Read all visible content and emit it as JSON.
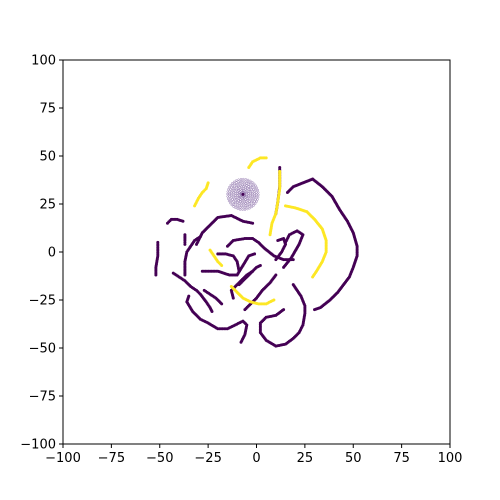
{
  "chart_data": {
    "type": "scatter",
    "title": "",
    "xlabel": "",
    "ylabel": "",
    "xlim": [
      -100,
      100
    ],
    "ylim": [
      -100,
      100
    ],
    "grid": false,
    "x_ticks": [
      -100,
      -75,
      -50,
      -25,
      0,
      25,
      50,
      75,
      100
    ],
    "y_ticks": [
      -100,
      -75,
      -50,
      -25,
      0,
      25,
      50,
      75,
      100
    ],
    "x_tick_labels": [
      "−100",
      "−75",
      "−50",
      "−25",
      "0",
      "25",
      "50",
      "75",
      "100"
    ],
    "y_tick_labels": [
      "−100",
      "−75",
      "−50",
      "−25",
      "0",
      "25",
      "50",
      "75",
      "100"
    ],
    "colors": {
      "purple": "#440154",
      "yellow": "#fde725",
      "cluster": "#7a5a9e"
    },
    "series": [
      {
        "color": "purple",
        "paths": [
          [
            [
              -46,
              15
            ],
            [
              -44,
              17
            ],
            [
              -41,
              17
            ],
            [
              -38,
              16
            ]
          ],
          [
            [
              -51,
              5
            ],
            [
              -51,
              -2
            ],
            [
              -52,
              -8
            ],
            [
              -52,
              -12
            ]
          ],
          [
            [
              -37,
              9
            ],
            [
              -37,
              6
            ],
            [
              -37,
              4
            ]
          ],
          [
            [
              -29,
              8
            ],
            [
              -32,
              6
            ],
            [
              -34,
              3
            ],
            [
              -36,
              0
            ],
            [
              -37,
              -5
            ],
            [
              -37,
              -9
            ],
            [
              -37,
              -12
            ]
          ],
          [
            [
              -31,
              4
            ],
            [
              -28,
              10
            ],
            [
              -24,
              14
            ],
            [
              -20,
              18
            ],
            [
              -13,
              19
            ],
            [
              -7,
              16
            ],
            [
              -2,
              15
            ]
          ],
          [
            [
              -28,
              -10
            ],
            [
              -24,
              -10
            ],
            [
              -20,
              -10
            ],
            [
              -14,
              -12
            ],
            [
              -10,
              -12
            ],
            [
              -7,
              -7
            ],
            [
              -4,
              -2
            ],
            [
              -1,
              -1
            ]
          ],
          [
            [
              -20,
              -1
            ],
            [
              -16,
              -1
            ],
            [
              -12,
              -2
            ],
            [
              -10,
              -5
            ],
            [
              -9,
              -10
            ]
          ],
          [
            [
              -15,
              3
            ],
            [
              -12,
              6
            ],
            [
              -6,
              7
            ],
            [
              -2,
              7
            ],
            [
              1,
              5
            ],
            [
              4,
              2
            ],
            [
              9,
              -2
            ],
            [
              14,
              -4
            ],
            [
              19,
              -4
            ]
          ],
          [
            [
              -35,
              -23
            ],
            [
              -36,
              -26
            ],
            [
              -33,
              -31
            ],
            [
              -29,
              -35
            ],
            [
              -25,
              -37
            ],
            [
              -20,
              -40
            ],
            [
              -15,
              -40
            ],
            [
              -11,
              -38
            ],
            [
              -7,
              -36
            ],
            [
              -5,
              -38
            ],
            [
              -6,
              -43
            ],
            [
              -8,
              -47
            ]
          ],
          [
            [
              -43,
              -11
            ],
            [
              -40,
              -13
            ],
            [
              -37,
              -15
            ],
            [
              -34,
              -18
            ],
            [
              -31,
              -20
            ],
            [
              -29,
              -22
            ],
            [
              -26,
              -26
            ],
            [
              -24,
              -29
            ],
            [
              -23,
              -31
            ]
          ],
          [
            [
              -27,
              -20
            ],
            [
              -24,
              -22
            ],
            [
              -21,
              -24
            ],
            [
              -18,
              -27
            ]
          ],
          [
            [
              -12,
              -24
            ],
            [
              -13,
              -20
            ],
            [
              -9,
              -16
            ],
            [
              -5,
              -12
            ],
            [
              -2,
              -10
            ],
            [
              0,
              -8
            ],
            [
              2,
              -7
            ]
          ],
          [
            [
              -6,
              -30
            ],
            [
              -3,
              -27
            ],
            [
              0,
              -24
            ],
            [
              3,
              -20
            ],
            [
              7,
              -16
            ],
            [
              10,
              -12
            ]
          ],
          [
            [
              -9,
              -17
            ],
            [
              -6,
              -14
            ],
            [
              -2,
              -10
            ]
          ],
          [
            [
              10,
              -4
            ],
            [
              13,
              0
            ],
            [
              15,
              4
            ],
            [
              14,
              7
            ],
            [
              11,
              6
            ]
          ],
          [
            [
              14,
              -8
            ],
            [
              18,
              -3
            ],
            [
              22,
              4
            ],
            [
              24,
              9
            ],
            [
              21,
              11
            ],
            [
              17,
              9
            ],
            [
              15,
              5
            ]
          ],
          [
            [
              16,
              31
            ],
            [
              19,
              34
            ],
            [
              24,
              36
            ],
            [
              29,
              38
            ],
            [
              34,
              34
            ],
            [
              39,
              29
            ],
            [
              43,
              22
            ],
            [
              47,
              16
            ],
            [
              50,
              10
            ],
            [
              52,
              3
            ],
            [
              52,
              -2
            ],
            [
              50,
              -8
            ],
            [
              48,
              -13
            ],
            [
              45,
              -17
            ],
            [
              42,
              -21
            ],
            [
              38,
              -25
            ],
            [
              33,
              -29
            ],
            [
              30,
              -30
            ]
          ],
          [
            [
              14,
              -30
            ],
            [
              10,
              -33
            ],
            [
              5,
              -34
            ],
            [
              2,
              -37
            ],
            [
              2,
              -42
            ],
            [
              5,
              -46
            ],
            [
              10,
              -49
            ],
            [
              15,
              -48
            ],
            [
              19,
              -45
            ],
            [
              22,
              -42
            ],
            [
              24,
              -38
            ],
            [
              25,
              -32
            ],
            [
              25,
              -28
            ],
            [
              23,
              -23
            ],
            [
              19,
              -17
            ]
          ],
          [
            [
              12,
              44
            ],
            [
              12,
              34
            ],
            [
              11,
              26
            ],
            [
              10,
              20
            ]
          ]
        ]
      },
      {
        "color": "yellow",
        "paths": [
          [
            [
              -32,
              24
            ],
            [
              -30,
              28
            ],
            [
              -28,
              31
            ],
            [
              -26,
              33
            ],
            [
              -25,
              36
            ]
          ],
          [
            [
              -24,
              1
            ],
            [
              -22,
              -2
            ],
            [
              -20,
              -5
            ],
            [
              -18,
              -7
            ]
          ],
          [
            [
              -13,
              -18
            ],
            [
              -10,
              -21
            ],
            [
              -7,
              -24
            ],
            [
              -3,
              -26
            ],
            [
              1,
              -27
            ],
            [
              5,
              -27
            ],
            [
              9,
              -25
            ]
          ],
          [
            [
              -4,
              44
            ],
            [
              -2,
              47
            ],
            [
              2,
              49
            ],
            [
              5,
              49
            ]
          ],
          [
            [
              7,
              9
            ],
            [
              8,
              15
            ],
            [
              10,
              20
            ],
            [
              11,
              26
            ],
            [
              12,
              33
            ],
            [
              12,
              42
            ]
          ],
          [
            [
              15,
              24
            ],
            [
              20,
              23
            ],
            [
              26,
              21
            ],
            [
              30,
              17
            ],
            [
              34,
              12
            ],
            [
              36,
              6
            ],
            [
              36,
              0
            ],
            [
              34,
              -5
            ],
            [
              31,
              -10
            ],
            [
              29,
              -13
            ]
          ]
        ]
      },
      {
        "color": "cluster",
        "center": [
          -7,
          30
        ],
        "radius": 8
      }
    ]
  }
}
